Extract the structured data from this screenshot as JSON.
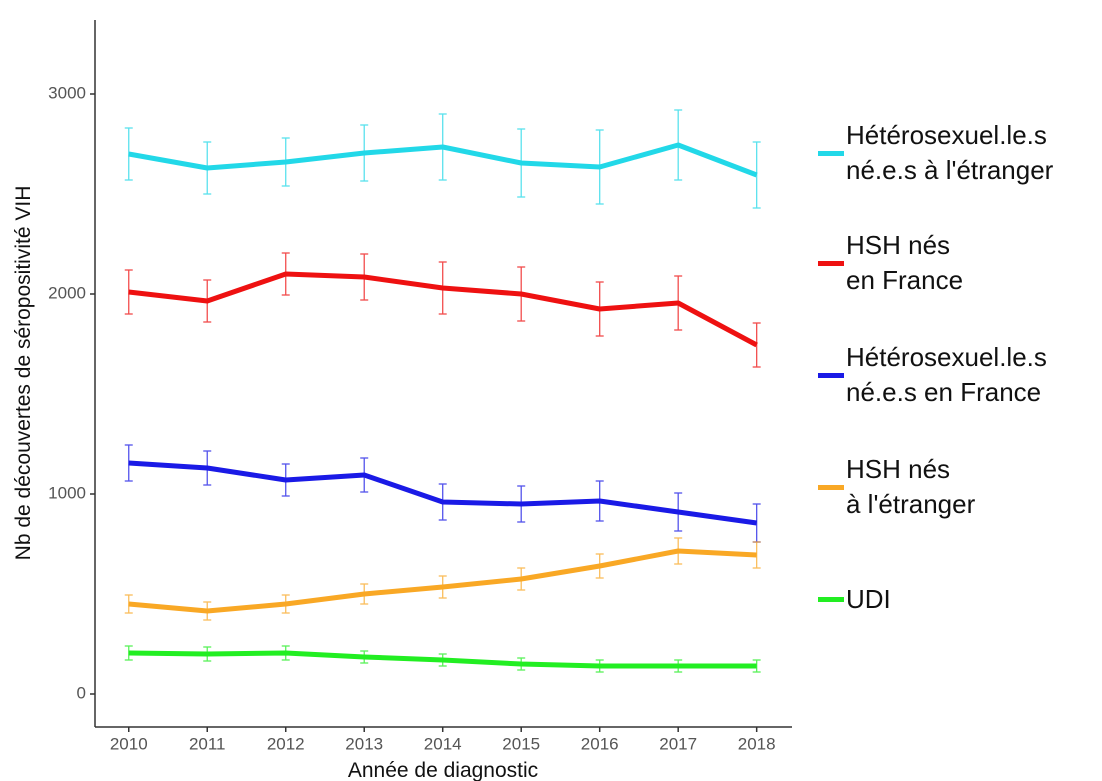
{
  "chart_data": {
    "type": "line",
    "x_label": "Année de diagnostic",
    "y_label": "Nb de découvertes de séropositivité VIH",
    "x": [
      2010,
      2011,
      2012,
      2013,
      2014,
      2015,
      2016,
      2017,
      2018
    ],
    "xlim": [
      2009.57,
      2018.45
    ],
    "xticks": [
      2010,
      2011,
      2012,
      2013,
      2014,
      2015,
      2016,
      2017,
      2018
    ],
    "ylim": [
      -165,
      3370
    ],
    "yticks": [
      0,
      1000,
      2000,
      3000
    ],
    "grid": false,
    "legend": "right",
    "series": [
      {
        "name": "Hétérosexuel.le.s\nné.e.s à l'étranger",
        "color": "#22d8e8",
        "values": [
          2700,
          2630,
          2660,
          2705,
          2735,
          2655,
          2635,
          2745,
          2595
        ],
        "errors": [
          130,
          130,
          120,
          140,
          165,
          170,
          185,
          175,
          165
        ]
      },
      {
        "name": "HSH nés\nen France",
        "color": "#ee1111",
        "values": [
          2010,
          1965,
          2100,
          2085,
          2030,
          2000,
          1925,
          1955,
          1745
        ],
        "errors": [
          110,
          105,
          105,
          115,
          130,
          135,
          135,
          135,
          110
        ]
      },
      {
        "name": "Hétérosexuel.le.s\nné.e.s en France",
        "color": "#1a1ae6",
        "values": [
          1155,
          1130,
          1070,
          1095,
          960,
          950,
          965,
          910,
          855
        ],
        "errors": [
          90,
          85,
          80,
          85,
          90,
          90,
          100,
          95,
          95
        ]
      },
      {
        "name": "HSH nés\nà l'étranger",
        "color": "#f9a825",
        "values": [
          450,
          415,
          450,
          500,
          535,
          575,
          640,
          715,
          695
        ],
        "errors": [
          45,
          45,
          45,
          50,
          55,
          55,
          60,
          65,
          65
        ]
      },
      {
        "name": "UDI",
        "color": "#22ee22",
        "values": [
          205,
          200,
          205,
          185,
          170,
          150,
          140,
          140,
          140
        ],
        "errors": [
          35,
          35,
          35,
          30,
          30,
          30,
          30,
          30,
          30
        ]
      }
    ]
  }
}
